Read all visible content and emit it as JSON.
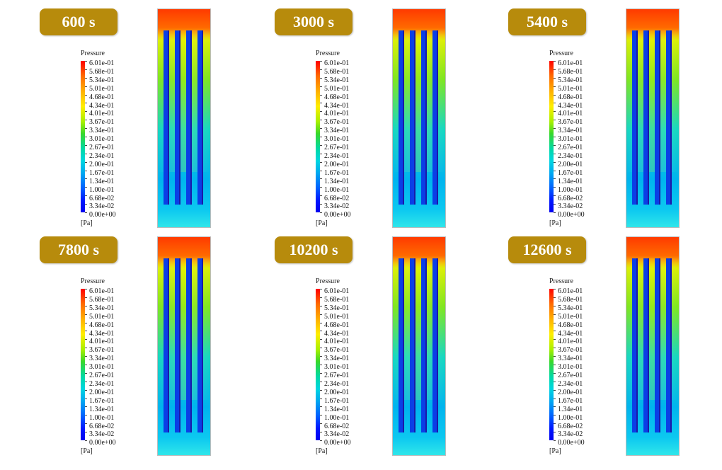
{
  "panels": [
    {
      "time": "600 s"
    },
    {
      "time": "3000 s"
    },
    {
      "time": "5400 s"
    },
    {
      "time": "7800 s"
    },
    {
      "time": "10200 s"
    },
    {
      "time": "12600 s"
    }
  ],
  "legend": {
    "title": "Pressure",
    "unit": "[Pa]",
    "ticks": [
      "6.01e-01",
      "5.68e-01",
      "5.34e-01",
      "5.01e-01",
      "4.68e-01",
      "4.34e-01",
      "4.01e-01",
      "3.67e-01",
      "3.34e-01",
      "3.01e-01",
      "2.67e-01",
      "2.34e-01",
      "2.00e-01",
      "1.67e-01",
      "1.34e-01",
      "1.00e-01",
      "6.68e-02",
      "3.34e-02",
      "0.00e+00"
    ],
    "colors": [
      "#ff0000",
      "#ff6a00",
      "#ffb000",
      "#ffee00",
      "#aaf000",
      "#38d82a",
      "#00d9a5",
      "#00d6e0",
      "#00a9f0",
      "#0060ff",
      "#0018ff",
      "#0000f0"
    ]
  }
}
